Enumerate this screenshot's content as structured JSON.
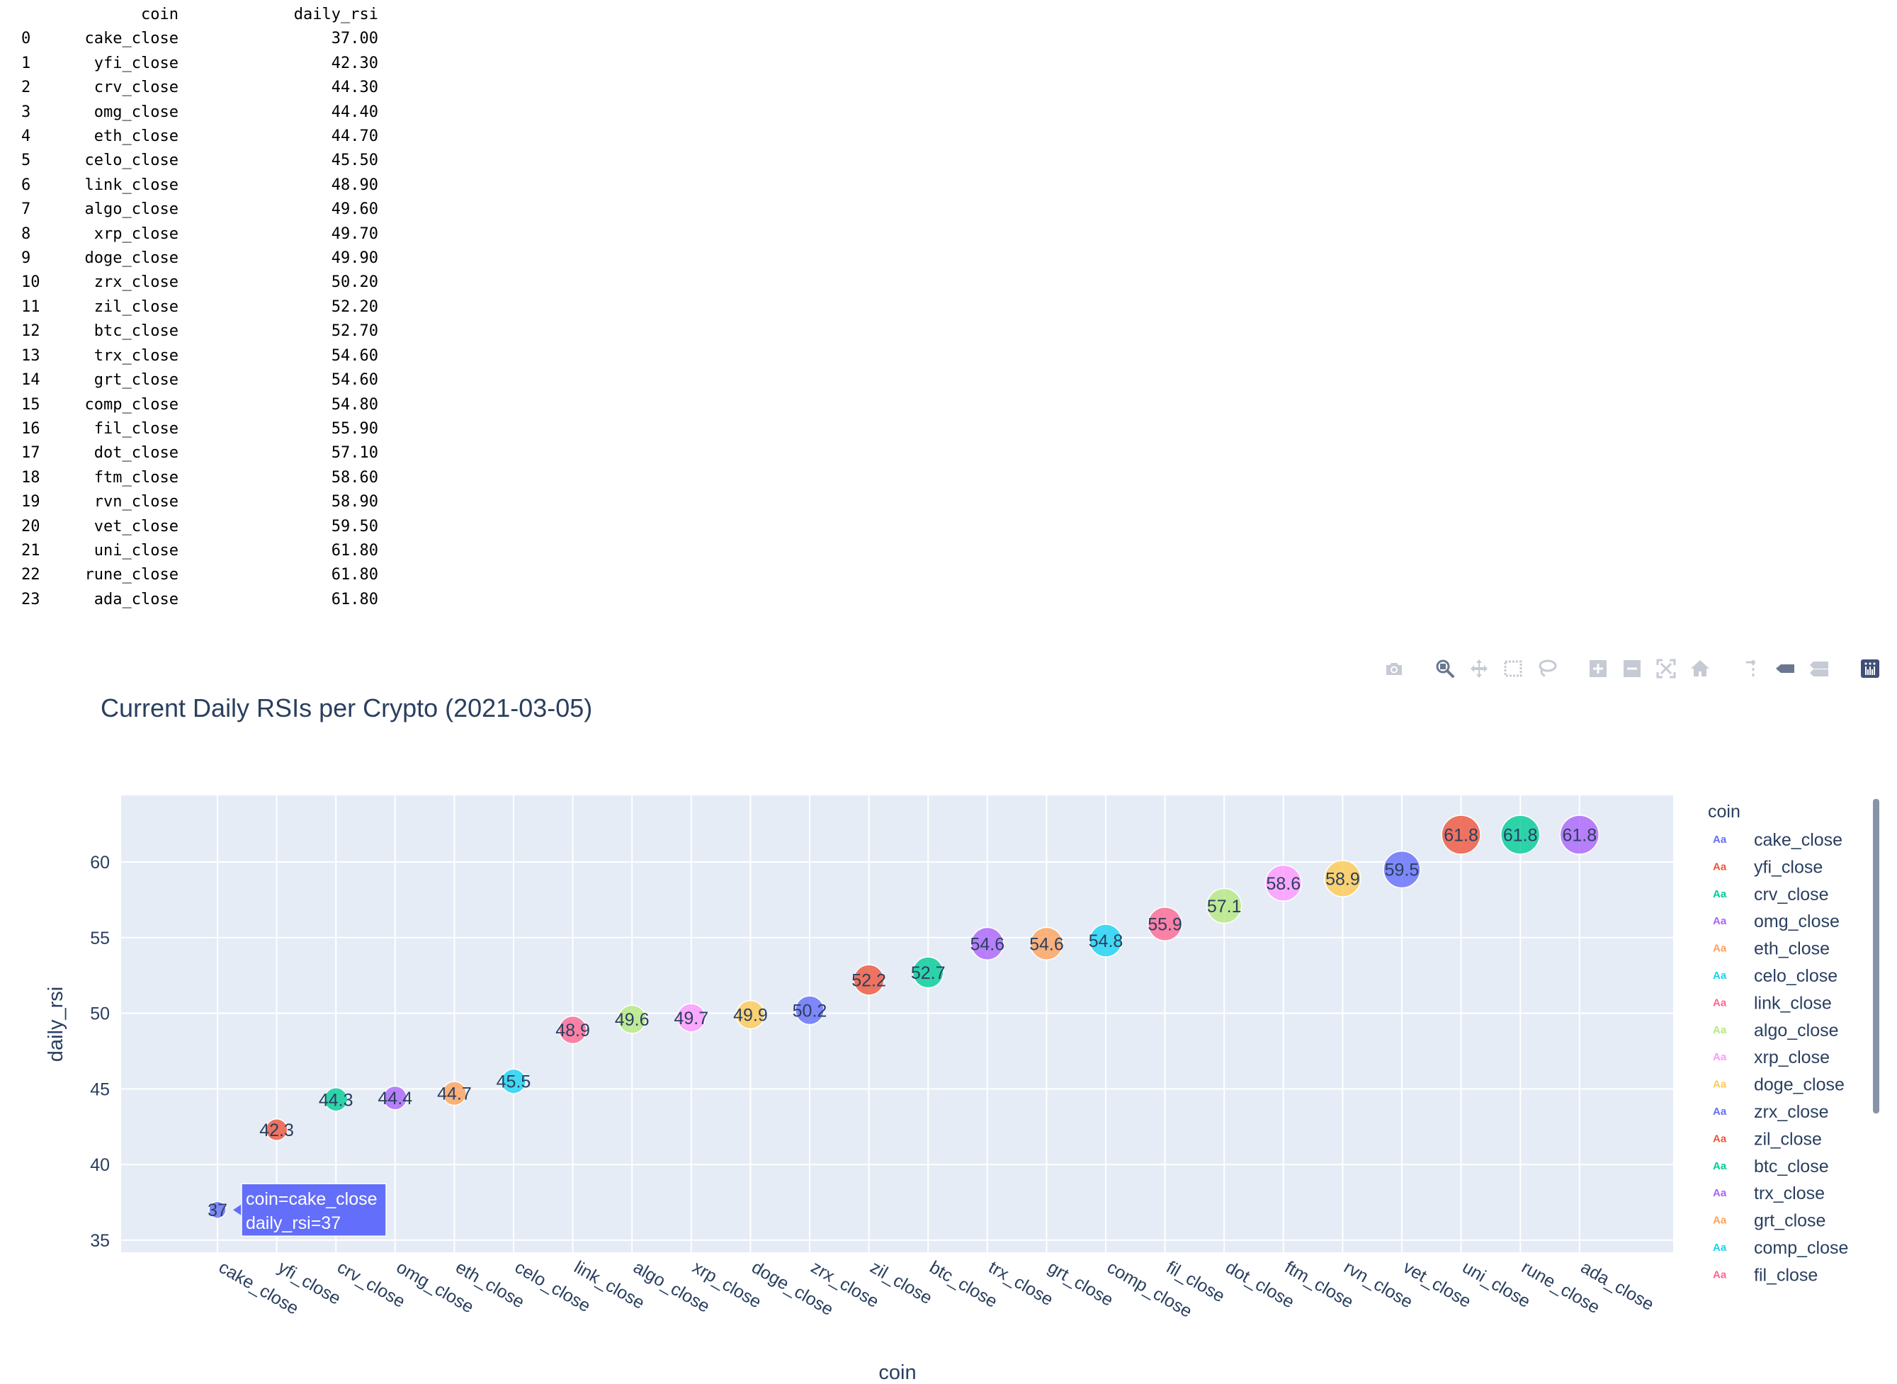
{
  "table": {
    "headers": [
      "",
      "coin",
      "daily_rsi"
    ],
    "rows": [
      [
        "0",
        "cake_close",
        "37.00"
      ],
      [
        "1",
        "yfi_close",
        "42.30"
      ],
      [
        "2",
        "crv_close",
        "44.30"
      ],
      [
        "3",
        "omg_close",
        "44.40"
      ],
      [
        "4",
        "eth_close",
        "44.70"
      ],
      [
        "5",
        "celo_close",
        "45.50"
      ],
      [
        "6",
        "link_close",
        "48.90"
      ],
      [
        "7",
        "algo_close",
        "49.60"
      ],
      [
        "8",
        "xrp_close",
        "49.70"
      ],
      [
        "9",
        "doge_close",
        "49.90"
      ],
      [
        "10",
        "zrx_close",
        "50.20"
      ],
      [
        "11",
        "zil_close",
        "52.20"
      ],
      [
        "12",
        "btc_close",
        "52.70"
      ],
      [
        "13",
        "trx_close",
        "54.60"
      ],
      [
        "14",
        "grt_close",
        "54.60"
      ],
      [
        "15",
        "comp_close",
        "54.80"
      ],
      [
        "16",
        "fil_close",
        "55.90"
      ],
      [
        "17",
        "dot_close",
        "57.10"
      ],
      [
        "18",
        "ftm_close",
        "58.60"
      ],
      [
        "19",
        "rvn_close",
        "58.90"
      ],
      [
        "20",
        "vet_close",
        "59.50"
      ],
      [
        "21",
        "uni_close",
        "61.80"
      ],
      [
        "22",
        "rune_close",
        "61.80"
      ],
      [
        "23",
        "ada_close",
        "61.80"
      ]
    ]
  },
  "modebar": {
    "icons": [
      "camera-icon",
      "zoom-icon",
      "pan-icon",
      "box-select-icon",
      "lasso-select-icon",
      "zoom-in-icon",
      "zoom-out-icon",
      "autoscale-icon",
      "reset-axes-icon",
      "spike-lines-icon",
      "hover-closest-icon",
      "hover-compare-icon",
      "plotly-logo-icon"
    ],
    "colors": {
      "icon": "#c5cad4",
      "active": "#6b7790",
      "logo": "#3f4f75"
    }
  },
  "chart_data": {
    "type": "scatter",
    "title": "Current Daily RSIs per Crypto (2021-03-05)",
    "xlabel": "coin",
    "ylabel": "daily_rsi",
    "categories": [
      "cake_close",
      "yfi_close",
      "crv_close",
      "omg_close",
      "eth_close",
      "celo_close",
      "link_close",
      "algo_close",
      "xrp_close",
      "doge_close",
      "zrx_close",
      "zil_close",
      "btc_close",
      "trx_close",
      "grt_close",
      "comp_close",
      "fil_close",
      "dot_close",
      "ftm_close",
      "rvn_close",
      "vet_close",
      "uni_close",
      "rune_close",
      "ada_close"
    ],
    "values": [
      37,
      42.3,
      44.3,
      44.4,
      44.7,
      45.5,
      48.9,
      49.6,
      49.7,
      49.9,
      50.2,
      52.2,
      52.7,
      54.6,
      54.6,
      54.8,
      55.9,
      57.1,
      58.6,
      58.9,
      59.5,
      61.8,
      61.8,
      61.8
    ],
    "point_labels": [
      "37",
      "42.3",
      "44.3",
      "44.4",
      "44.7",
      "45.5",
      "48.9",
      "49.6",
      "49.7",
      "49.9",
      "50.2",
      "52.2",
      "52.7",
      "54.6",
      "54.6",
      "54.8",
      "55.9",
      "57.1",
      "58.6",
      "58.9",
      "59.5",
      "61.8",
      "61.8",
      "61.8"
    ],
    "colors": [
      "#636efa",
      "#EF553B",
      "#00cc96",
      "#ab63fa",
      "#FFA15A",
      "#19d3f3",
      "#FF6692",
      "#B6E880",
      "#FF97FF",
      "#FECB52"
    ],
    "y_ticks": [
      35,
      40,
      45,
      50,
      55,
      60
    ],
    "y_tick_labels": [
      "35",
      "40",
      "45",
      "50",
      "55",
      "60"
    ],
    "ylim": [
      34.2,
      64.4
    ],
    "grid": true,
    "background": "#e5ecf6",
    "legend": {
      "title": "coin",
      "placement": "right",
      "visible_entries": [
        "cake_close",
        "yfi_close",
        "crv_close",
        "omg_close",
        "eth_close",
        "celo_close",
        "link_close",
        "algo_close",
        "xrp_close",
        "doge_close",
        "zrx_close",
        "zil_close",
        "btc_close",
        "trx_close",
        "grt_close",
        "comp_close",
        "fil_close"
      ],
      "symbol_text": "Aa"
    },
    "hover": {
      "index": 0,
      "lines": [
        "coin=cake_close",
        "daily_rsi=37"
      ]
    }
  }
}
